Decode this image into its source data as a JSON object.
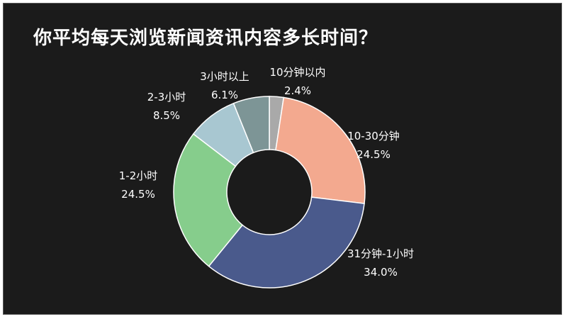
{
  "title": "你平均每天浏览新闻资讯内容多长时间？",
  "chart_data": {
    "type": "pie",
    "donut": true,
    "title": "你平均每天浏览新闻资讯内容多长时间？",
    "categories": [
      "10分钟以内",
      "10-30分钟",
      "31分钟-1小时",
      "1-2小时",
      "2-3小时",
      "3小时以上"
    ],
    "values": [
      2.4,
      24.5,
      34.0,
      24.5,
      8.5,
      6.1
    ],
    "value_labels": [
      "2.4%",
      "24.5%",
      "34.0%",
      "24.5%",
      "8.5%",
      "6.1%"
    ],
    "colors": [
      "#a9a9a9",
      "#f3a98f",
      "#4a5a8c",
      "#86cd8c",
      "#a8c7d1",
      "#7d9596"
    ],
    "legend": "none"
  }
}
